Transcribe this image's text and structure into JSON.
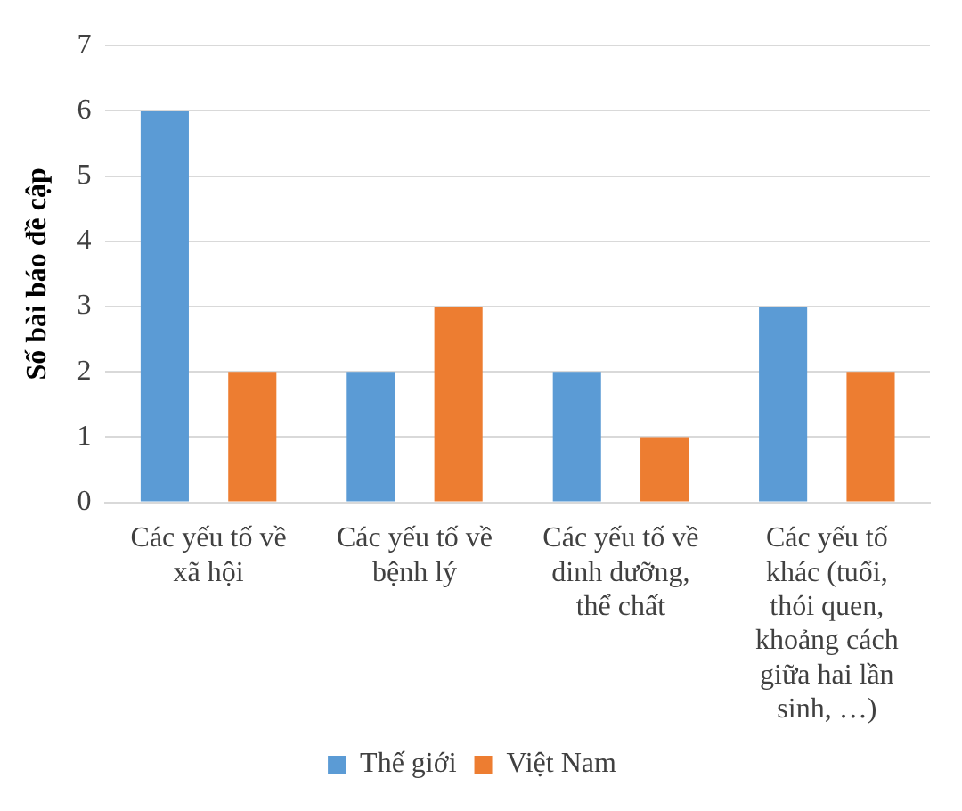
{
  "chart_data": {
    "type": "bar",
    "ylabel": "Số bài báo đề cập",
    "categories": [
      "Các yếu tố về xã hội",
      "Các yếu tố về bệnh lý",
      "Các yếu tố về dinh dưỡng, thể chất",
      "Các yếu tố khác (tuổi, thói quen, khoảng cách giữa hai lần sinh, …)"
    ],
    "series": [
      {
        "name": "Thế giới",
        "color": "#5b9bd5",
        "values": [
          6,
          2,
          2,
          3
        ]
      },
      {
        "name": "Việt Nam",
        "color": "#ed7d31",
        "values": [
          2,
          3,
          1,
          2
        ]
      }
    ],
    "ylim": [
      0,
      7
    ],
    "yticks": [
      0,
      1,
      2,
      3,
      4,
      5,
      6,
      7
    ],
    "grid": "y",
    "legend": "bottom"
  }
}
